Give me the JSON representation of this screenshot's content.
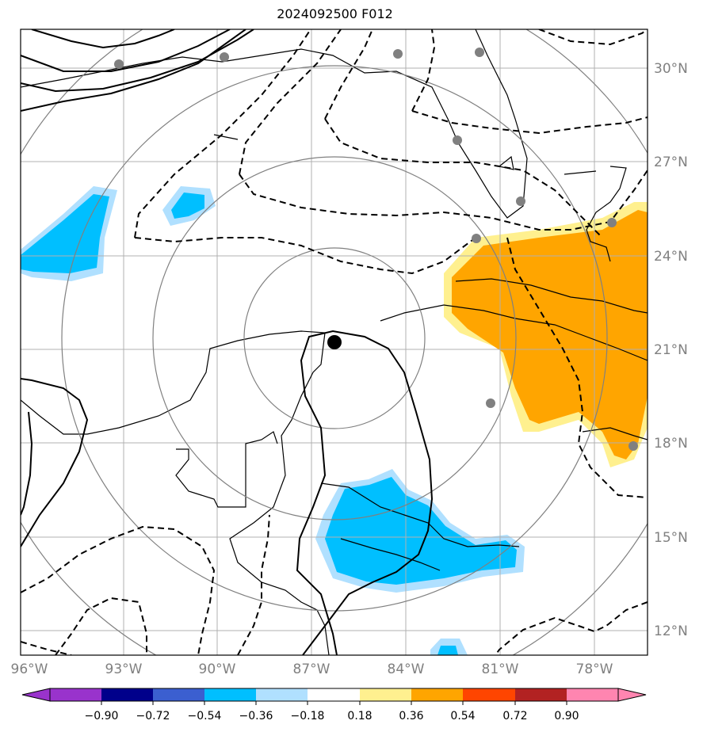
{
  "title": "2024092500 F012",
  "lat_labels": [
    "30°N",
    "27°N",
    "24°N",
    "21°N",
    "18°N",
    "15°N",
    "12°N"
  ],
  "lon_labels": [
    "96°W",
    "93°W",
    "90°W",
    "87°W",
    "84°W",
    "81°W",
    "78°W"
  ],
  "colorbar": {
    "colors": [
      "#9933cc",
      "#00008b",
      "#3b5fd0",
      "#00bfff",
      "#b0e0ff",
      "#ffffff",
      "#fff08f",
      "#ffa500",
      "#ff4500",
      "#b22222",
      "#ff85b0"
    ],
    "labels": [
      "−0.90",
      "−0.72",
      "−0.54",
      "−0.36",
      "−0.18",
      "0.18",
      "0.36",
      "0.54",
      "0.72",
      "0.90"
    ]
  },
  "colors": {
    "grid": "#b0b0b0",
    "range_rings": "#808080",
    "stations": "#808080",
    "center": "#000000",
    "positive_fill": "#ffa500",
    "negative_fill": "#00bfff"
  }
}
